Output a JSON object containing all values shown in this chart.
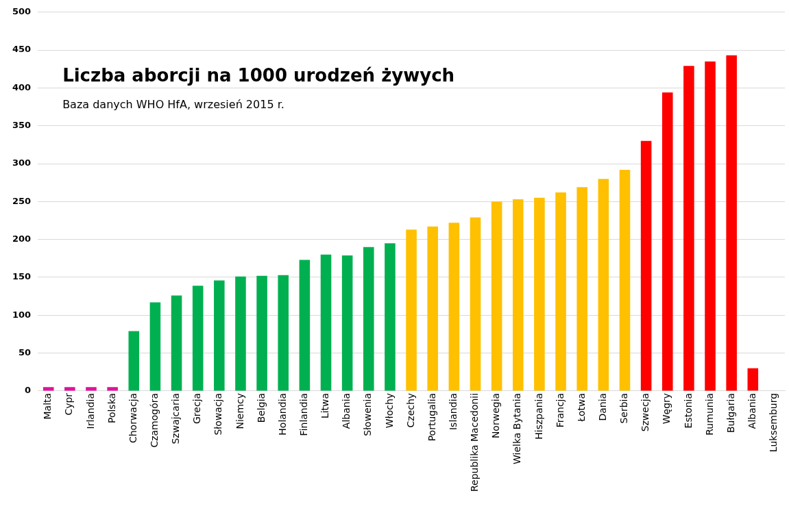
{
  "chart_data": {
    "type": "bar",
    "title": "Liczba aborcji na 1000 urodzeń żywych",
    "subtitle": "Baza danych WHO HfA, wrzesień 2015 r.",
    "categories": [
      "Malta",
      "Cypr",
      "Irlandia",
      "Polska",
      "Chorwacja",
      "Czamogóra",
      "Szwajcaria",
      "Grecja",
      "Słowacja",
      "Niemcy",
      "Belgia",
      "Holandia",
      "Finlandia",
      "Litwa",
      "Albania",
      "Słowenia",
      "Włochy",
      "Czechy",
      "Portugalia",
      "Islandia",
      "Republika Macedonii",
      "Norwegia",
      "Wielka Bytania",
      "Hiszpania",
      "Francja",
      "Łotwa",
      "Dania",
      "Serbia",
      "Szwecja",
      "Węgry",
      "Estonia",
      "Rumunia",
      "Bułgaria",
      "Albania",
      "Luksemburg"
    ],
    "values": [
      5,
      5,
      5,
      5,
      79,
      117,
      126,
      139,
      146,
      151,
      152,
      153,
      173,
      180,
      179,
      190,
      195,
      213,
      217,
      222,
      229,
      250,
      253,
      255,
      262,
      269,
      280,
      292,
      330,
      394,
      429,
      435,
      443,
      30,
      null
    ],
    "colors": [
      "#e0119d",
      "#e0119d",
      "#e0119d",
      "#e0119d",
      "#00b050",
      "#00b050",
      "#00b050",
      "#00b050",
      "#00b050",
      "#00b050",
      "#00b050",
      "#00b050",
      "#00b050",
      "#00b050",
      "#00b050",
      "#00b050",
      "#00b050",
      "#ffc000",
      "#ffc000",
      "#ffc000",
      "#ffc000",
      "#ffc000",
      "#ffc000",
      "#ffc000",
      "#ffc000",
      "#ffc000",
      "#ffc000",
      "#ffc000",
      "#ff0000",
      "#ff0000",
      "#ff0000",
      "#ff0000",
      "#ff0000",
      "#ff0000",
      "#ff0000"
    ],
    "ylim": [
      0,
      500
    ],
    "yticks": [
      0,
      50,
      100,
      150,
      200,
      250,
      300,
      350,
      400,
      450,
      500
    ],
    "grid": "y",
    "legend": false
  }
}
